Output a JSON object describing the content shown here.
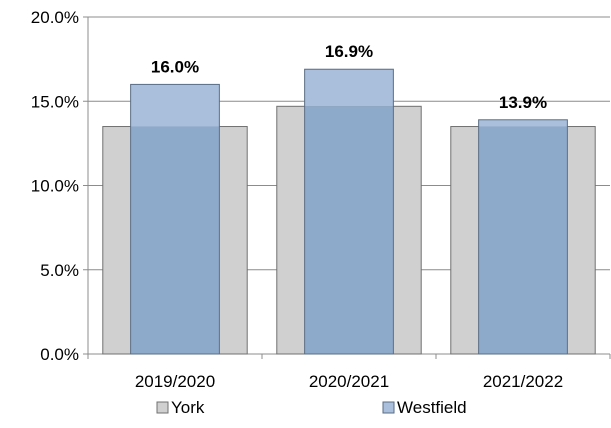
{
  "chart_data": {
    "type": "bar",
    "categories": [
      "2019/2020",
      "2020/2021",
      "2021/2022"
    ],
    "series": [
      {
        "name": "York",
        "values": [
          13.5,
          14.7,
          13.5
        ],
        "color": "#d0d0d0",
        "stroke": "#707070",
        "show_labels": false
      },
      {
        "name": "Westfield",
        "values": [
          16.0,
          16.9,
          13.9
        ],
        "color": "#8eaacb",
        "top_color": "#a9bfdc",
        "stroke": "#5a6d85",
        "show_labels": true,
        "labels": [
          "16.0%",
          "16.9%",
          "13.9%"
        ]
      }
    ],
    "title": "",
    "xlabel": "",
    "ylabel": "",
    "ylim": [
      0,
      20
    ],
    "yticks": [
      0,
      5,
      10,
      15,
      20
    ],
    "ytick_labels": [
      "0.0%",
      "5.0%",
      "10.0%",
      "15.0%",
      "20.0%"
    ],
    "grid": true,
    "grid_color": "#8c8c8c",
    "legend_position": "bottom"
  }
}
